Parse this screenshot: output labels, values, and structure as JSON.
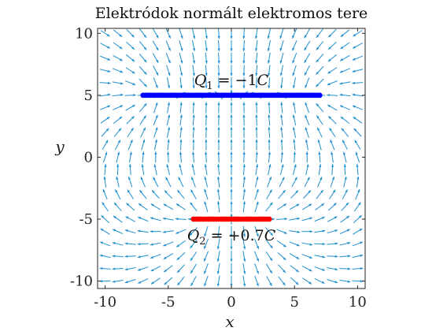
{
  "chart_data": {
    "type": "quiver",
    "title": "Elektródok normált elektromos tere",
    "xlabel": "x",
    "ylabel": "y",
    "xlim": [
      -10.6,
      10.6
    ],
    "ylim": [
      -10.6,
      10.4
    ],
    "xticks": [
      -10,
      -5,
      0,
      5,
      10
    ],
    "xtick_labels": [
      "-10",
      "-5",
      "0",
      "5",
      "10"
    ],
    "yticks": [
      10,
      5,
      0,
      -5,
      -10
    ],
    "ytick_labels": [
      "10",
      "5",
      "0",
      "-5",
      "-10"
    ],
    "electrodes": [
      {
        "name": "Q_1 = -1C",
        "charge": -1,
        "x_start": -7,
        "x_end": 7,
        "y": 5,
        "color": "#0000ff",
        "label_parts": {
          "base": "Q",
          "sub": "1",
          "rest": " = −1",
          "unit": "C"
        }
      },
      {
        "name": "Q_2 = +0.7C",
        "charge": 0.7,
        "x_start": -3,
        "x_end": 3,
        "y": -5,
        "color": "#ff0000",
        "label_parts": {
          "base": "Q",
          "sub": "2",
          "rest": " = +0.7",
          "unit": "C"
        }
      }
    ],
    "field_grid": {
      "x_from": -10,
      "x_to": 10,
      "y_from": -10,
      "y_to": 10,
      "count": 21,
      "normalized": true
    },
    "arrow_color": "#1f8fcf"
  }
}
